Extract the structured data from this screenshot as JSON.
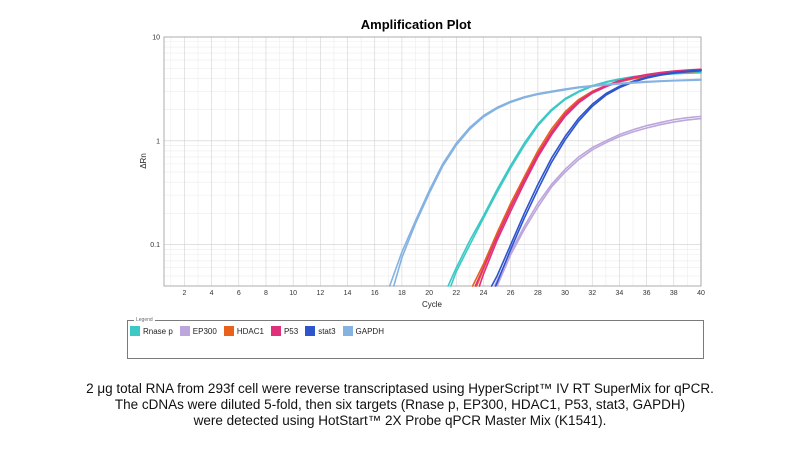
{
  "chart_data": {
    "type": "line",
    "title": "Amplification Plot",
    "xlabel": "Cycle",
    "ylabel": "ΔRn",
    "xlim": [
      0.5,
      40
    ],
    "ylim": [
      0.04,
      10
    ],
    "yscale": "log",
    "xticks": [
      "2",
      "4",
      "6",
      "8",
      "10",
      "12",
      "14",
      "16",
      "18",
      "20",
      "22",
      "24",
      "26",
      "28",
      "30",
      "32",
      "34",
      "36",
      "38",
      "40"
    ],
    "yticks": [
      "10",
      "1",
      "0.1"
    ],
    "grid": true,
    "legend_title": "Legend",
    "legend_position": "bottom",
    "series": [
      {
        "name": "Rnase p",
        "color": "#3cc9c6",
        "replicates": [
          {
            "x": [
              21.4,
              22,
              23,
              24,
              25,
              26,
              27,
              28,
              29,
              30,
              31,
              32,
              33,
              34,
              35,
              36,
              37,
              38,
              39,
              40
            ],
            "y": [
              0.04,
              0.06,
              0.11,
              0.19,
              0.34,
              0.58,
              0.95,
              1.45,
              2.0,
              2.55,
              3.0,
              3.4,
              3.7,
              3.95,
              4.15,
              4.3,
              4.4,
              4.47,
              4.52,
              4.55
            ]
          },
          {
            "x": [
              21.6,
              22,
              23,
              24,
              25,
              26,
              27,
              28,
              29,
              30,
              31,
              32,
              33,
              34,
              35,
              36,
              37,
              38,
              39,
              40
            ],
            "y": [
              0.04,
              0.055,
              0.1,
              0.18,
              0.32,
              0.55,
              0.9,
              1.4,
              1.95,
              2.5,
              2.95,
              3.35,
              3.65,
              3.9,
              4.1,
              4.25,
              4.35,
              4.42,
              4.48,
              4.52
            ]
          }
        ]
      },
      {
        "name": "EP300",
        "color": "#bca6dc",
        "replicates": [
          {
            "x": [
              24.8,
              25,
              26,
              27,
              28,
              29,
              30,
              31,
              32,
              33,
              34,
              35,
              36,
              37,
              38,
              39,
              40
            ],
            "y": [
              0.04,
              0.045,
              0.085,
              0.15,
              0.25,
              0.38,
              0.53,
              0.7,
              0.86,
              1.0,
              1.15,
              1.28,
              1.4,
              1.5,
              1.6,
              1.67,
              1.72
            ]
          },
          {
            "x": [
              25.0,
              26,
              27,
              28,
              29,
              30,
              31,
              32,
              33,
              34,
              35,
              36,
              37,
              38,
              39,
              40
            ],
            "y": [
              0.04,
              0.08,
              0.14,
              0.23,
              0.36,
              0.5,
              0.66,
              0.82,
              0.96,
              1.1,
              1.22,
              1.33,
              1.43,
              1.52,
              1.59,
              1.64
            ]
          }
        ]
      },
      {
        "name": "HDAC1",
        "color": "#e8621c",
        "replicates": [
          {
            "x": [
              23.2,
              24,
              25,
              26,
              27,
              28,
              29,
              30,
              31,
              32,
              33,
              34,
              35,
              36,
              37,
              38,
              39,
              40
            ],
            "y": [
              0.04,
              0.065,
              0.13,
              0.25,
              0.45,
              0.8,
              1.3,
              1.9,
              2.5,
              3.0,
              3.4,
              3.75,
              4.0,
              4.2,
              4.4,
              4.55,
              4.65,
              4.75
            ]
          },
          {
            "x": [
              23.5,
              24,
              25,
              26,
              27,
              28,
              29,
              30,
              31,
              32,
              33,
              34,
              35,
              36,
              37,
              38,
              39,
              40
            ],
            "y": [
              0.04,
              0.058,
              0.12,
              0.23,
              0.42,
              0.75,
              1.22,
              1.82,
              2.42,
              2.95,
              3.35,
              3.7,
              3.95,
              4.15,
              4.35,
              4.5,
              4.6,
              4.7
            ]
          }
        ]
      },
      {
        "name": "P53",
        "color": "#e0307c",
        "replicates": [
          {
            "x": [
              23.4,
              24,
              25,
              26,
              27,
              28,
              29,
              30,
              31,
              32,
              33,
              34,
              35,
              36,
              37,
              38,
              39,
              40
            ],
            "y": [
              0.04,
              0.06,
              0.12,
              0.23,
              0.42,
              0.74,
              1.2,
              1.8,
              2.4,
              2.95,
              3.4,
              3.8,
              4.1,
              4.35,
              4.55,
              4.7,
              4.8,
              4.88
            ]
          },
          {
            "x": [
              23.7,
              24,
              25,
              26,
              27,
              28,
              29,
              30,
              31,
              32,
              33,
              34,
              35,
              36,
              37,
              38,
              39,
              40
            ],
            "y": [
              0.04,
              0.052,
              0.11,
              0.21,
              0.39,
              0.7,
              1.14,
              1.72,
              2.32,
              2.88,
              3.32,
              3.72,
              4.02,
              4.28,
              4.48,
              4.63,
              4.74,
              4.83
            ]
          }
        ]
      },
      {
        "name": "stat3",
        "color": "#2f55cc",
        "replicates": [
          {
            "x": [
              24.6,
              25,
              26,
              27,
              28,
              29,
              30,
              31,
              32,
              33,
              34,
              35,
              36,
              37,
              38,
              39,
              40
            ],
            "y": [
              0.04,
              0.05,
              0.1,
              0.2,
              0.38,
              0.68,
              1.1,
              1.65,
              2.25,
              2.85,
              3.35,
              3.75,
              4.1,
              4.35,
              4.55,
              4.7,
              4.8
            ]
          },
          {
            "x": [
              24.9,
              25,
              26,
              27,
              28,
              29,
              30,
              31,
              32,
              33,
              34,
              35,
              36,
              37,
              38,
              39,
              40
            ],
            "y": [
              0.04,
              0.043,
              0.09,
              0.18,
              0.34,
              0.62,
              1.02,
              1.55,
              2.15,
              2.75,
              3.25,
              3.68,
              4.02,
              4.28,
              4.48,
              4.63,
              4.73
            ]
          }
        ]
      },
      {
        "name": "GAPDH",
        "color": "#86b2e2",
        "replicates": [
          {
            "x": [
              17.1,
              18,
              19,
              20,
              21,
              22,
              23,
              24,
              25,
              26,
              27,
              28,
              29,
              30,
              31,
              32,
              33,
              34,
              35,
              36,
              37,
              38,
              39,
              40
            ],
            "y": [
              0.04,
              0.085,
              0.17,
              0.33,
              0.6,
              0.95,
              1.35,
              1.75,
              2.1,
              2.4,
              2.65,
              2.85,
              3.0,
              3.15,
              3.3,
              3.4,
              3.5,
              3.58,
              3.65,
              3.72,
              3.78,
              3.82,
              3.86,
              3.9
            ]
          },
          {
            "x": [
              17.4,
              18,
              19,
              20,
              21,
              22,
              23,
              24,
              25,
              26,
              27,
              28,
              29,
              30,
              31,
              32,
              33,
              34,
              35,
              36,
              37,
              38,
              39,
              40
            ],
            "y": [
              0.04,
              0.075,
              0.16,
              0.31,
              0.57,
              0.91,
              1.3,
              1.7,
              2.05,
              2.35,
              2.6,
              2.8,
              2.95,
              3.1,
              3.25,
              3.35,
              3.45,
              3.53,
              3.6,
              3.67,
              3.73,
              3.78,
              3.82,
              3.85
            ]
          }
        ]
      }
    ]
  },
  "caption": {
    "line1": "2 μg total RNA from 293f cell were reverse transcriptased using HyperScript™ IV RT SuperMix for qPCR.",
    "line2": "The cDNAs were diluted 5-fold, then six targets (Rnase p, EP300, HDAC1, P53, stat3, GAPDH)",
    "line3": "were detected using HotStart™ 2X Probe qPCR Master Mix (K1541)."
  }
}
